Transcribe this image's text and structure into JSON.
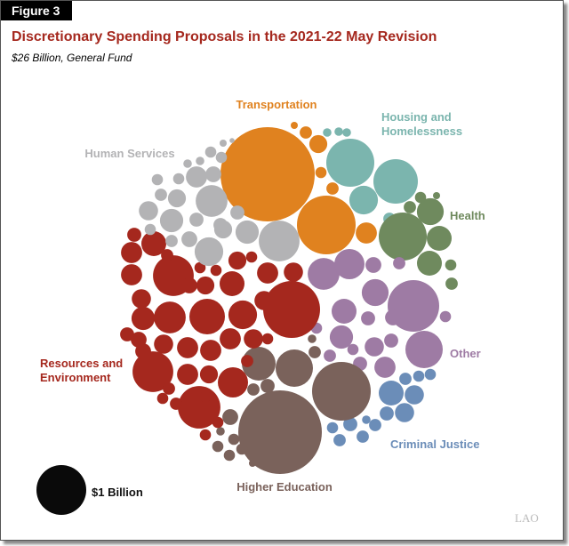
{
  "figure_label": "Figure 3",
  "chart_data": {
    "type": "bubble",
    "title": "Discretionary Spending Proposals in the 2021-22 May Revision",
    "subtitle": "$26 Billion, General Fund",
    "unit": "billions of dollars",
    "size_legend": {
      "label": "$1 Billion",
      "value": 1,
      "color": "#0a0a0a"
    },
    "categories": [
      {
        "name": "Transportation",
        "lines": [
          "Transportation"
        ],
        "color": "#E0821F",
        "values": [
          3.58,
          1.39,
          0.18,
          0.13,
          0.06,
          0.05,
          0.06,
          0.02
        ]
      },
      {
        "name": "Housing and Homelessness",
        "lines": [
          "Housing and",
          "Homelessness"
        ],
        "color": "#7BB5AE",
        "values": [
          0.93,
          0.8,
          0.33,
          0.06,
          0.03,
          0.03,
          0.03
        ]
      },
      {
        "name": "Health",
        "lines": [
          "Health"
        ],
        "color": "#6F8A5E",
        "values": [
          0.93,
          0.29,
          0.25,
          0.25,
          0.06,
          0.05,
          0.06,
          0.05,
          0.02
        ]
      },
      {
        "name": "Other",
        "lines": [
          "Other"
        ],
        "color": "#9E7BA4",
        "values": [
          1.07,
          0.56,
          0.41,
          0.37,
          0.29,
          0.25,
          0.22,
          0.15,
          0.18,
          0.1,
          0.06,
          0.08,
          0.08,
          0.1,
          0.08,
          0.06,
          0.05,
          0.05,
          0.05
        ]
      },
      {
        "name": "Criminal Justice",
        "lines": [
          "Criminal Justice"
        ],
        "color": "#6B8DB8",
        "values": [
          0.25,
          0.15,
          0.15,
          0.08,
          0.05,
          0.05,
          0.06,
          0.06,
          0.08,
          0.06,
          0.06,
          0.05,
          0.05,
          0.03
        ]
      },
      {
        "name": "Higher Education",
        "lines": [
          "Higher Education"
        ],
        "color": "#7A625B",
        "values": [
          2.82,
          1.39,
          0.56,
          0.46,
          0.1,
          0.08,
          0.06,
          0.06,
          0.05,
          0.05,
          0.05,
          0.05,
          0.03,
          0.02,
          0.03
        ]
      },
      {
        "name": "Resources and Environment",
        "lines": [
          "Resources and",
          "Environment"
        ],
        "color": "#A5281E",
        "values": [
          1.31,
          0.67,
          0.67,
          0.73,
          0.51,
          0.41,
          0.37,
          0.33,
          0.25,
          0.18,
          0.15,
          0.15,
          0.15,
          0.18,
          0.1,
          0.13,
          0.15,
          0.18,
          0.18,
          0.18,
          0.13,
          0.06,
          0.06,
          0.22,
          0.15,
          0.18,
          0.18,
          0.25,
          0.1,
          0.08,
          0.1,
          0.05,
          0.13,
          0.05,
          0.05,
          0.05,
          0.05,
          0.05,
          0.08,
          0.06,
          0.05,
          0.06,
          0.05
        ]
      },
      {
        "name": "Human Services",
        "lines": [
          "Human Services"
        ],
        "color": "#B3B3B5",
        "values": [
          0.67,
          0.41,
          0.33,
          0.22,
          0.13,
          0.22,
          0.15,
          0.18,
          0.13,
          0.08,
          0.1,
          0.06,
          0.08,
          0.08,
          0.1,
          0.05,
          0.05,
          0.06,
          0.05,
          0.05,
          0.02,
          0.01,
          0.05,
          0.03,
          0.03
        ]
      }
    ]
  },
  "watermark": "LAOA"
}
